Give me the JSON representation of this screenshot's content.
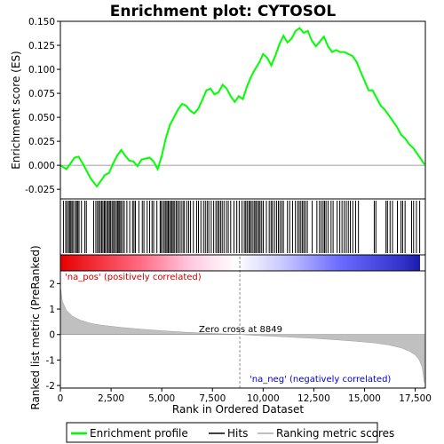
{
  "chart_data": {
    "type": "line",
    "title": "Enrichment plot: CYTOSOL",
    "xlabel": "Rank in Ordered Dataset",
    "ylabel_top": "Enrichment score (ES)",
    "ylabel_bottom": "Ranked list metric (PreRanked)",
    "xlim": [
      0,
      18000
    ],
    "x_ticks": [
      0,
      2500,
      5000,
      7500,
      10000,
      12500,
      15000,
      17500
    ],
    "x_tick_labels": [
      "0",
      "2,500",
      "5,000",
      "7,500",
      "10,000",
      "12,500",
      "15,000",
      "17,500"
    ],
    "es_ylim": [
      -0.035,
      0.15
    ],
    "es_ticks": [
      -0.025,
      0.0,
      0.025,
      0.05,
      0.075,
      0.1,
      0.125,
      0.15
    ],
    "es_tick_labels": [
      "-0.025",
      "0.000",
      "0.025",
      "0.050",
      "0.075",
      "0.100",
      "0.125",
      "0.150"
    ],
    "metric_ylim": [
      -2.1,
      2.5
    ],
    "metric_ticks": [
      -2,
      -1,
      0,
      1,
      2
    ],
    "metric_tick_labels": [
      "-2",
      "-1",
      "0",
      "1",
      "2"
    ],
    "series": [
      {
        "name": "Enrichment profile",
        "color": "#00ff00",
        "x": [
          0,
          300,
          500,
          700,
          900,
          1100,
          1300,
          1500,
          1800,
          2000,
          2200,
          2400,
          2600,
          2800,
          3000,
          3200,
          3400,
          3600,
          3800,
          4000,
          4200,
          4400,
          4600,
          4800,
          5000,
          5200,
          5400,
          5600,
          5800,
          6000,
          6200,
          6400,
          6600,
          6800,
          7000,
          7200,
          7400,
          7600,
          7800,
          8000,
          8200,
          8400,
          8600,
          8800,
          9000,
          9200,
          9400,
          9600,
          9800,
          10000,
          10200,
          10400,
          10600,
          10800,
          11000,
          11200,
          11400,
          11600,
          11800,
          12000,
          12200,
          12400,
          12600,
          12800,
          13000,
          13200,
          13400,
          13600,
          13800,
          14000,
          14200,
          14400,
          14600,
          14800,
          15000,
          15200,
          15400,
          15600,
          15800,
          16000,
          16200,
          16400,
          16600,
          16800,
          17000,
          17200,
          17400,
          17600,
          17800,
          17950
        ],
        "y": [
          0.0,
          -0.004,
          0.002,
          0.008,
          0.009,
          0.002,
          -0.006,
          -0.014,
          -0.022,
          -0.016,
          -0.01,
          -0.008,
          0.002,
          0.01,
          0.016,
          0.01,
          0.005,
          0.004,
          -0.001,
          0.006,
          0.007,
          0.008,
          0.004,
          -0.004,
          0.01,
          0.028,
          0.042,
          0.05,
          0.058,
          0.064,
          0.062,
          0.057,
          0.054,
          0.059,
          0.068,
          0.078,
          0.08,
          0.074,
          0.076,
          0.084,
          0.08,
          0.072,
          0.066,
          0.072,
          0.069,
          0.082,
          0.092,
          0.1,
          0.107,
          0.116,
          0.112,
          0.104,
          0.114,
          0.126,
          0.135,
          0.128,
          0.132,
          0.14,
          0.143,
          0.138,
          0.14,
          0.13,
          0.124,
          0.129,
          0.134,
          0.124,
          0.118,
          0.12,
          0.118,
          0.118,
          0.116,
          0.114,
          0.108,
          0.098,
          0.088,
          0.078,
          0.078,
          0.07,
          0.062,
          0.058,
          0.052,
          0.046,
          0.04,
          0.032,
          0.028,
          0.022,
          0.018,
          0.012,
          0.006,
          0.001
        ]
      },
      {
        "name": "Ranking metric scores",
        "color": "#c0c0c0",
        "x": [
          0,
          100,
          300,
          600,
          1000,
          1500,
          2000,
          3000,
          4000,
          5000,
          6000,
          7000,
          8000,
          8849,
          9500,
          10500,
          11500,
          12500,
          13500,
          14500,
          15500,
          16200,
          16800,
          17200,
          17500,
          17700,
          17850,
          17950
        ],
        "y": [
          1.9,
          1.3,
          0.95,
          0.72,
          0.56,
          0.44,
          0.37,
          0.28,
          0.21,
          0.15,
          0.1,
          0.06,
          0.03,
          0.0,
          -0.03,
          -0.07,
          -0.11,
          -0.15,
          -0.2,
          -0.26,
          -0.33,
          -0.41,
          -0.52,
          -0.65,
          -0.8,
          -1.0,
          -1.3,
          -1.9
        ]
      }
    ],
    "hits_name": "Hits",
    "hits": [
      150,
      260,
      330,
      410,
      470,
      520,
      580,
      650,
      740,
      800,
      860,
      920,
      1040,
      1200,
      1280,
      1640,
      1750,
      1830,
      1900,
      1970,
      2040,
      2100,
      2170,
      2220,
      2300,
      2360,
      2420,
      2480,
      2550,
      2620,
      2680,
      2760,
      2820,
      2880,
      2930,
      2990,
      3070,
      3150,
      3280,
      3420,
      3560,
      3630,
      3700,
      3870,
      4040,
      4120,
      4280,
      4400,
      4520,
      4600,
      4760,
      4920,
      4970,
      5060,
      5130,
      5200,
      5260,
      5320,
      5380,
      5450,
      5510,
      5570,
      5640,
      5720,
      5790,
      5870,
      5960,
      6050,
      6120,
      6240,
      6330,
      6420,
      6560,
      6720,
      6810,
      6930,
      7060,
      7150,
      7240,
      7320,
      7440,
      7560,
      7670,
      7750,
      7820,
      7900,
      7980,
      8070,
      8190,
      8280,
      8400,
      8560,
      8700,
      8820,
      8960,
      9070,
      9140,
      9210,
      9290,
      9350,
      9420,
      9500,
      9580,
      9640,
      9710,
      9790,
      9850,
      9930,
      10010,
      10160,
      10300,
      10390,
      10460,
      10560,
      10660,
      10750,
      10830,
      10920,
      11000,
      11200,
      11310,
      11450,
      11590,
      11700,
      11780,
      11860,
      11940,
      12010,
      12090,
      12180,
      12420,
      12650,
      12780,
      12870,
      12960,
      13030,
      13100,
      13200,
      13350,
      13450,
      13650,
      13780,
      13890,
      14000,
      14100,
      14200,
      14300,
      14420,
      14560,
      14700,
      15480,
      15560,
      16060,
      16130,
      16260,
      16380,
      16620,
      16800,
      16880,
      17000,
      17320,
      17420,
      17560,
      17720
    ],
    "positive_label": "'na_pos' (positively correlated)",
    "negative_label": "'na_neg' (negatively correlated)",
    "zero_cross_label": "Zero cross at 8849",
    "zero_cross": 8849,
    "legend": [
      "Enrichment profile",
      "Hits",
      "Ranking metric scores"
    ],
    "legend_position": "bottom",
    "colors": {
      "positive": "#ff0000",
      "neutral": "#ffffff",
      "negative": "#0000ff",
      "profile": "#00ff00",
      "metric": "#c0c0c0",
      "zero_cross": "#808080"
    }
  }
}
